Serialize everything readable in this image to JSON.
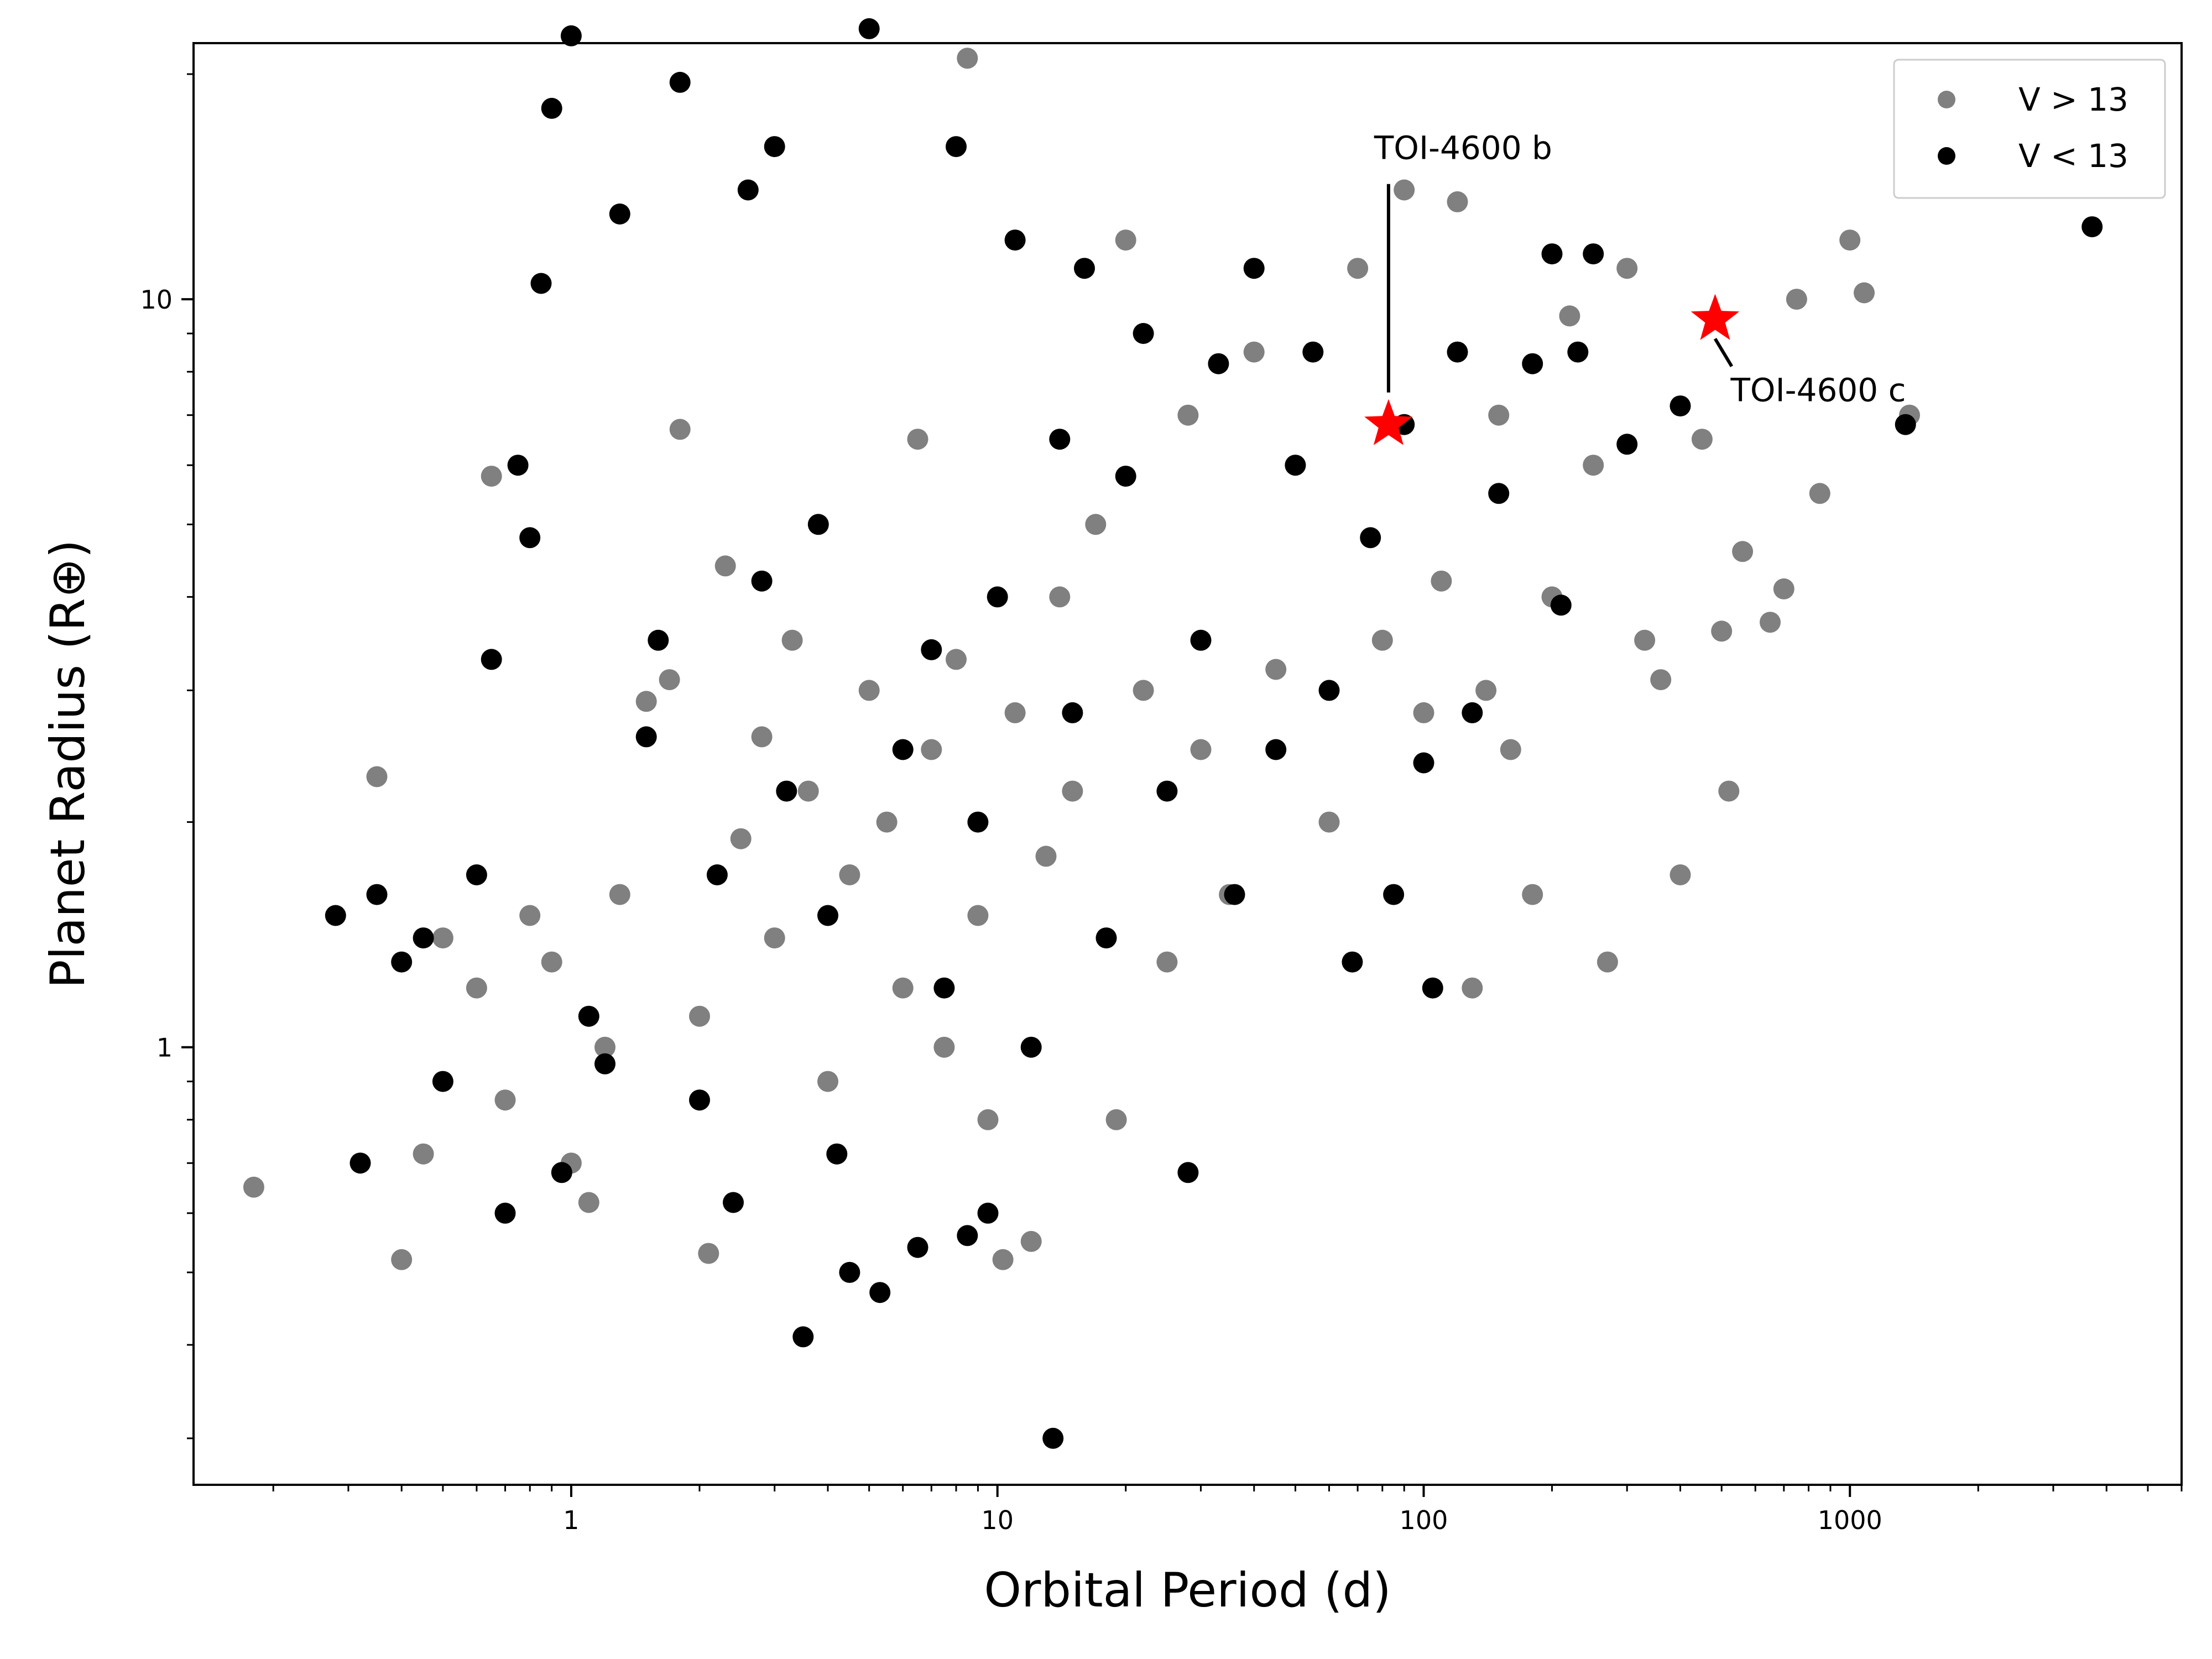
{
  "chart_data": {
    "type": "scatter",
    "title": "",
    "xlabel": "Orbital Period (d)",
    "ylabel": "Planet Radius (R⊕)",
    "xscale": "log",
    "yscale": "log",
    "xlim": [
      0.13,
      6000
    ],
    "ylim": [
      0.26,
      22
    ],
    "xticks": [
      {
        "value": 1,
        "label": "1"
      },
      {
        "value": 10,
        "label": "10"
      },
      {
        "value": 100,
        "label": "100"
      },
      {
        "value": 1000,
        "label": "1000"
      }
    ],
    "yticks": [
      {
        "value": 1,
        "label": "1"
      },
      {
        "value": 10,
        "label": "10"
      }
    ],
    "grid": false,
    "legend_position": "top-right",
    "series": [
      {
        "name": "V > 13",
        "color": "#808080",
        "marker": "circle",
        "points": [
          [
            0.18,
            0.65
          ],
          [
            0.35,
            2.3
          ],
          [
            0.4,
            0.52
          ],
          [
            0.45,
            0.72
          ],
          [
            0.5,
            1.4
          ],
          [
            0.6,
            1.2
          ],
          [
            0.65,
            5.8
          ],
          [
            0.7,
            0.85
          ],
          [
            0.8,
            1.5
          ],
          [
            0.9,
            1.3
          ],
          [
            1.0,
            0.7
          ],
          [
            1.1,
            0.62
          ],
          [
            1.2,
            1.0
          ],
          [
            1.3,
            1.6
          ],
          [
            1.5,
            2.9
          ],
          [
            1.7,
            3.1
          ],
          [
            1.8,
            6.7
          ],
          [
            2.0,
            1.1
          ],
          [
            2.1,
            0.53
          ],
          [
            2.3,
            4.4
          ],
          [
            2.5,
            1.9
          ],
          [
            2.8,
            2.6
          ],
          [
            3.0,
            1.4
          ],
          [
            3.3,
            3.5
          ],
          [
            3.6,
            2.2
          ],
          [
            4.0,
            0.9
          ],
          [
            4.5,
            1.7
          ],
          [
            5.0,
            3.0
          ],
          [
            5.5,
            2.0
          ],
          [
            6.0,
            1.2
          ],
          [
            6.5,
            6.5
          ],
          [
            7.0,
            2.5
          ],
          [
            7.5,
            1.0
          ],
          [
            8.0,
            3.3
          ],
          [
            8.5,
            21.0
          ],
          [
            9.0,
            1.5
          ],
          [
            9.5,
            0.8
          ],
          [
            10.3,
            0.52
          ],
          [
            11.0,
            2.8
          ],
          [
            12.0,
            0.55
          ],
          [
            13.0,
            1.8
          ],
          [
            14.0,
            4.0
          ],
          [
            15.0,
            2.2
          ],
          [
            17.0,
            5.0
          ],
          [
            19.0,
            0.8
          ],
          [
            20.0,
            12.0
          ],
          [
            22.0,
            3.0
          ],
          [
            25.0,
            1.3
          ],
          [
            28.0,
            7.0
          ],
          [
            30.0,
            2.5
          ],
          [
            35.0,
            1.6
          ],
          [
            40.0,
            8.5
          ],
          [
            45.0,
            3.2
          ],
          [
            50.0,
            6.0
          ],
          [
            60.0,
            2.0
          ],
          [
            70.0,
            11.0
          ],
          [
            80.0,
            3.5
          ],
          [
            90.0,
            14.0
          ],
          [
            100.0,
            2.8
          ],
          [
            110.0,
            4.2
          ],
          [
            120.0,
            13.5
          ],
          [
            130.0,
            1.2
          ],
          [
            140.0,
            3.0
          ],
          [
            150.0,
            7.0
          ],
          [
            160.0,
            2.5
          ],
          [
            180.0,
            1.6
          ],
          [
            200.0,
            4.0
          ],
          [
            220.0,
            9.5
          ],
          [
            250.0,
            6.0
          ],
          [
            270.0,
            1.3
          ],
          [
            300.0,
            11.0
          ],
          [
            330.0,
            3.5
          ],
          [
            360.0,
            3.1
          ],
          [
            400.0,
            1.7
          ],
          [
            450.0,
            6.5
          ],
          [
            500.0,
            3.6
          ],
          [
            520.0,
            2.2
          ],
          [
            560.0,
            4.6
          ],
          [
            650.0,
            3.7
          ],
          [
            700.0,
            4.1
          ],
          [
            750.0,
            10.0
          ],
          [
            850.0,
            5.5
          ],
          [
            1000.0,
            12.0
          ],
          [
            1080.0,
            10.2
          ],
          [
            1380.0,
            7.0
          ]
        ]
      },
      {
        "name": "V < 13",
        "color": "#000000",
        "marker": "circle",
        "points": [
          [
            0.28,
            1.5
          ],
          [
            0.32,
            0.7
          ],
          [
            0.35,
            1.6
          ],
          [
            0.4,
            1.3
          ],
          [
            0.45,
            1.4
          ],
          [
            0.5,
            0.9
          ],
          [
            0.6,
            1.7
          ],
          [
            0.65,
            3.3
          ],
          [
            0.7,
            0.6
          ],
          [
            0.75,
            6.0
          ],
          [
            0.8,
            4.8
          ],
          [
            0.85,
            10.5
          ],
          [
            0.9,
            18.0
          ],
          [
            0.95,
            0.68
          ],
          [
            1.0,
            22.5
          ],
          [
            1.1,
            1.1
          ],
          [
            1.2,
            0.95
          ],
          [
            1.3,
            13.0
          ],
          [
            1.5,
            2.6
          ],
          [
            1.6,
            3.5
          ],
          [
            1.8,
            19.5
          ],
          [
            2.0,
            0.85
          ],
          [
            2.2,
            1.7
          ],
          [
            2.4,
            0.62
          ],
          [
            2.6,
            14.0
          ],
          [
            2.8,
            4.2
          ],
          [
            3.0,
            16.0
          ],
          [
            3.2,
            2.2
          ],
          [
            3.5,
            0.41
          ],
          [
            3.8,
            5.0
          ],
          [
            4.0,
            1.5
          ],
          [
            4.2,
            0.72
          ],
          [
            4.5,
            0.5
          ],
          [
            5.0,
            23.0
          ],
          [
            5.3,
            0.47
          ],
          [
            6.0,
            2.5
          ],
          [
            6.5,
            0.54
          ],
          [
            7.0,
            3.4
          ],
          [
            7.5,
            1.2
          ],
          [
            8.0,
            16.0
          ],
          [
            8.5,
            0.56
          ],
          [
            9.0,
            2.0
          ],
          [
            9.5,
            0.6
          ],
          [
            10.0,
            4.0
          ],
          [
            11.0,
            12.0
          ],
          [
            12.0,
            1.0
          ],
          [
            13.5,
            0.3
          ],
          [
            14.0,
            6.5
          ],
          [
            15.0,
            2.8
          ],
          [
            16.0,
            11.0
          ],
          [
            18.0,
            1.4
          ],
          [
            20.0,
            5.8
          ],
          [
            22.0,
            9.0
          ],
          [
            25.0,
            2.2
          ],
          [
            28.0,
            0.68
          ],
          [
            30.0,
            3.5
          ],
          [
            33.0,
            8.2
          ],
          [
            36.0,
            1.6
          ],
          [
            40.0,
            11.0
          ],
          [
            45.0,
            2.5
          ],
          [
            50.0,
            6.0
          ],
          [
            55.0,
            8.5
          ],
          [
            60.0,
            3.0
          ],
          [
            68.0,
            1.3
          ],
          [
            75.0,
            4.8
          ],
          [
            85.0,
            1.6
          ],
          [
            90.0,
            6.8
          ],
          [
            100.0,
            2.4
          ],
          [
            105.0,
            1.2
          ],
          [
            120.0,
            8.5
          ],
          [
            130.0,
            2.8
          ],
          [
            150.0,
            5.5
          ],
          [
            180.0,
            8.2
          ],
          [
            200.0,
            11.5
          ],
          [
            210.0,
            3.9
          ],
          [
            230.0,
            8.5
          ],
          [
            250.0,
            11.5
          ],
          [
            300.0,
            6.4
          ],
          [
            400.0,
            7.2
          ],
          [
            1350.0,
            6.8
          ],
          [
            3700.0,
            12.5
          ]
        ]
      }
    ],
    "highlights": {
      "color": "#ff0000",
      "marker": "star",
      "points": [
        {
          "label": "TOI-4600 b",
          "x": 82.7,
          "y": 6.8
        },
        {
          "label": "TOI-4600 c",
          "x": 482.8,
          "y": 9.4
        }
      ]
    }
  }
}
